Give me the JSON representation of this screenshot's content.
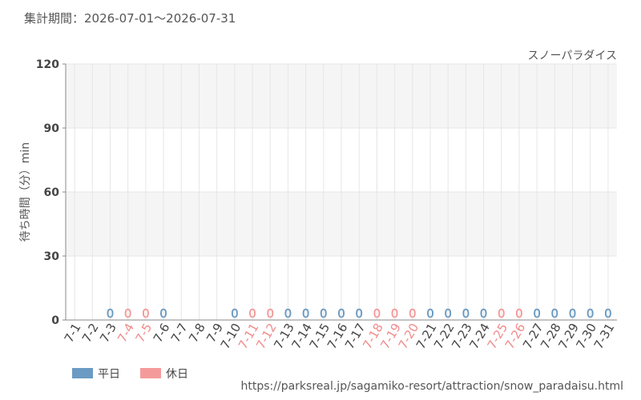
{
  "chart_data": {
    "type": "bar",
    "title": "集計期間：2026-07-01～2026-07-31",
    "subtitle": "スノーパラダイス",
    "y_label": "待ち時間（分）min",
    "source": "https://parksreal.jp/sagamiko-resort/attraction/snow_paradaisu.html",
    "categories": [
      "7-1",
      "7-2",
      "7-3",
      "7-4",
      "7-5",
      "7-6",
      "7-7",
      "7-8",
      "7-9",
      "7-10",
      "7-11",
      "7-12",
      "7-13",
      "7-14",
      "7-15",
      "7-16",
      "7-17",
      "7-18",
      "7-19",
      "7-20",
      "7-21",
      "7-22",
      "7-23",
      "7-24",
      "7-25",
      "7-26",
      "7-27",
      "7-28",
      "7-29",
      "7-30",
      "7-31"
    ],
    "series": [
      {
        "name": "平日",
        "color": "#6b9bc3",
        "values": [
          null,
          null,
          0,
          null,
          null,
          0,
          null,
          null,
          null,
          0,
          null,
          null,
          0,
          0,
          0,
          0,
          0,
          null,
          null,
          null,
          0,
          0,
          0,
          0,
          null,
          null,
          0,
          0,
          0,
          0,
          0
        ]
      },
      {
        "name": "休日",
        "color": "#f59a9a",
        "values": [
          null,
          null,
          null,
          0,
          0,
          null,
          null,
          null,
          null,
          null,
          0,
          0,
          null,
          null,
          null,
          null,
          null,
          0,
          0,
          0,
          null,
          null,
          null,
          null,
          0,
          0,
          null,
          null,
          null,
          null,
          null
        ]
      }
    ],
    "ylim": [
      0,
      120
    ],
    "yticks": [
      0,
      30,
      60,
      90,
      120
    ],
    "grid": true
  }
}
